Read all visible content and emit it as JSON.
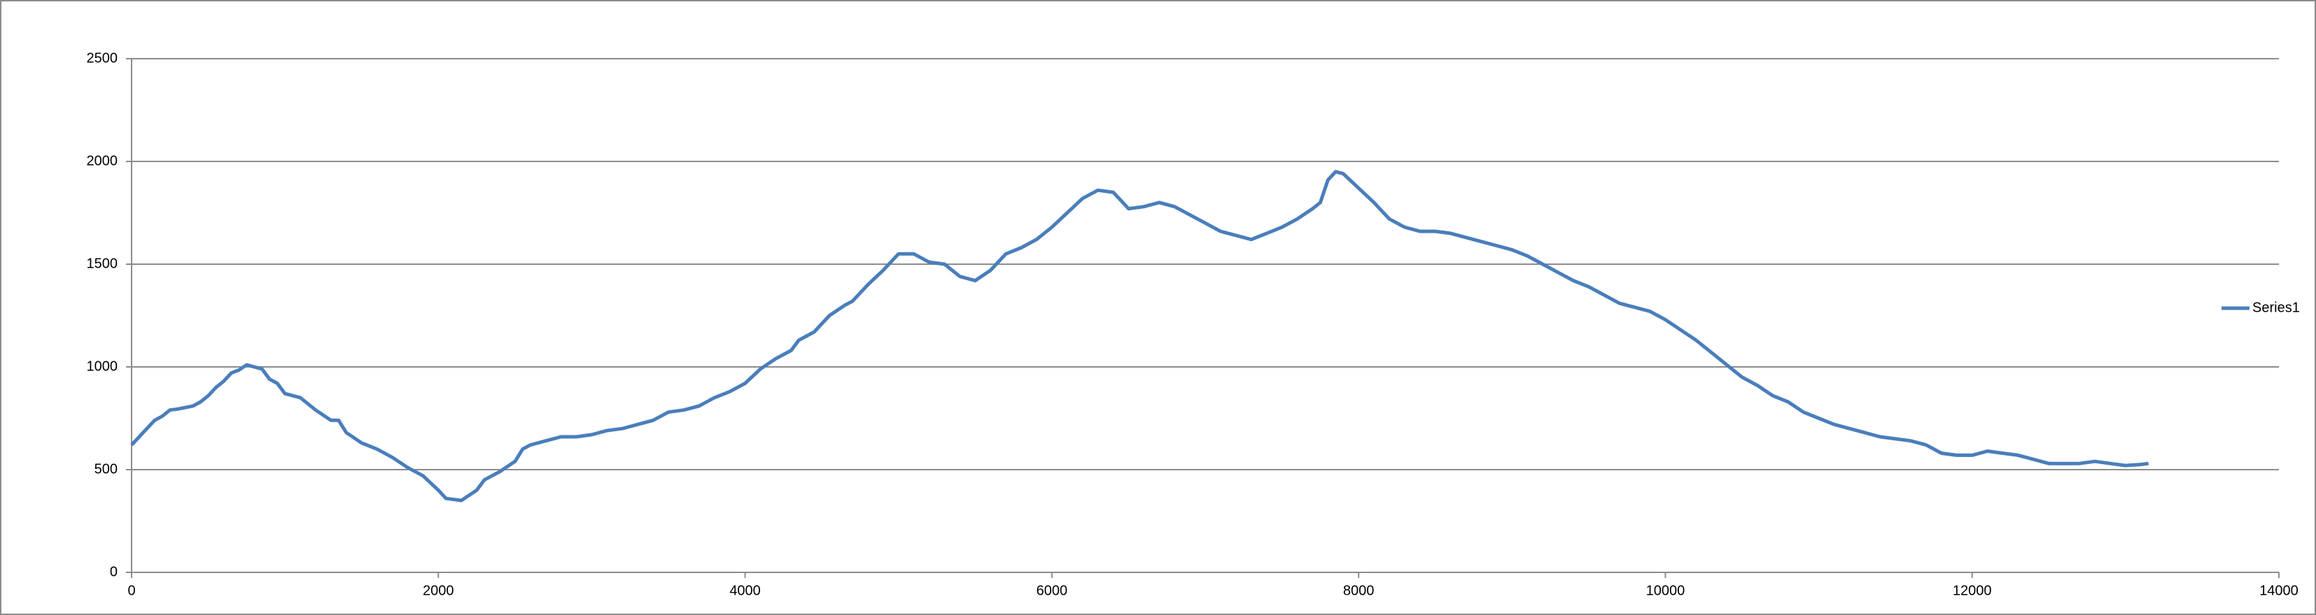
{
  "chart_data": {
    "type": "line",
    "x": [
      0,
      100,
      150,
      200,
      250,
      300,
      400,
      450,
      500,
      550,
      600,
      650,
      700,
      750,
      800,
      850,
      900,
      950,
      1000,
      1100,
      1200,
      1300,
      1350,
      1400,
      1500,
      1600,
      1700,
      1800,
      1900,
      2000,
      2050,
      2150,
      2250,
      2300,
      2400,
      2500,
      2550,
      2600,
      2700,
      2800,
      2900,
      3000,
      3100,
      3200,
      3300,
      3400,
      3500,
      3600,
      3700,
      3800,
      3900,
      4000,
      4100,
      4200,
      4300,
      4350,
      4450,
      4550,
      4650,
      4700,
      4800,
      4900,
      5000,
      5100,
      5200,
      5300,
      5400,
      5500,
      5600,
      5700,
      5800,
      5900,
      6000,
      6100,
      6200,
      6300,
      6400,
      6500,
      6600,
      6700,
      6800,
      6900,
      7000,
      7100,
      7200,
      7300,
      7400,
      7500,
      7600,
      7700,
      7750,
      7800,
      7850,
      7900,
      8000,
      8100,
      8200,
      8300,
      8400,
      8500,
      8600,
      8700,
      8800,
      8900,
      9000,
      9100,
      9200,
      9300,
      9400,
      9500,
      9600,
      9700,
      9800,
      9900,
      10000,
      10100,
      10200,
      10300,
      10400,
      10500,
      10600,
      10700,
      10800,
      10900,
      11000,
      11100,
      11200,
      11300,
      11400,
      11500,
      11600,
      11700,
      11800,
      11900,
      12000,
      12100,
      12200,
      12300,
      12400,
      12500,
      12600,
      12700,
      12800,
      12900,
      13000,
      13100,
      13150
    ],
    "series": [
      {
        "name": "Series1",
        "color": "#4a7ebb",
        "values": [
          620,
          700,
          740,
          760,
          790,
          795,
          810,
          830,
          860,
          900,
          930,
          970,
          985,
          1010,
          1000,
          990,
          940,
          920,
          870,
          850,
          790,
          740,
          740,
          680,
          630,
          600,
          560,
          510,
          470,
          400,
          360,
          350,
          400,
          450,
          490,
          540,
          600,
          620,
          640,
          660,
          660,
          670,
          690,
          700,
          720,
          740,
          780,
          790,
          810,
          850,
          880,
          920,
          990,
          1040,
          1080,
          1130,
          1170,
          1250,
          1300,
          1320,
          1400,
          1470,
          1550,
          1550,
          1510,
          1500,
          1440,
          1420,
          1470,
          1550,
          1580,
          1620,
          1680,
          1750,
          1820,
          1860,
          1850,
          1770,
          1780,
          1800,
          1780,
          1740,
          1700,
          1660,
          1640,
          1620,
          1650,
          1680,
          1720,
          1770,
          1800,
          1910,
          1950,
          1940,
          1870,
          1800,
          1720,
          1680,
          1660,
          1660,
          1650,
          1630,
          1610,
          1590,
          1570,
          1540,
          1500,
          1460,
          1420,
          1390,
          1350,
          1310,
          1290,
          1270,
          1230,
          1180,
          1130,
          1070,
          1010,
          950,
          910,
          860,
          830,
          780,
          750,
          720,
          700,
          680,
          660,
          650,
          640,
          620,
          580,
          570,
          570,
          590,
          580,
          570,
          550,
          530,
          530,
          530,
          540,
          530,
          520,
          525,
          530
        ]
      }
    ],
    "xlim": [
      0,
      14000
    ],
    "xticks": [
      0,
      2000,
      4000,
      6000,
      8000,
      10000,
      12000,
      14000
    ],
    "ylim": [
      0,
      2500
    ],
    "yticks": [
      0,
      500,
      1000,
      1500,
      2000,
      2500
    ],
    "grid": true,
    "legend": "right"
  }
}
